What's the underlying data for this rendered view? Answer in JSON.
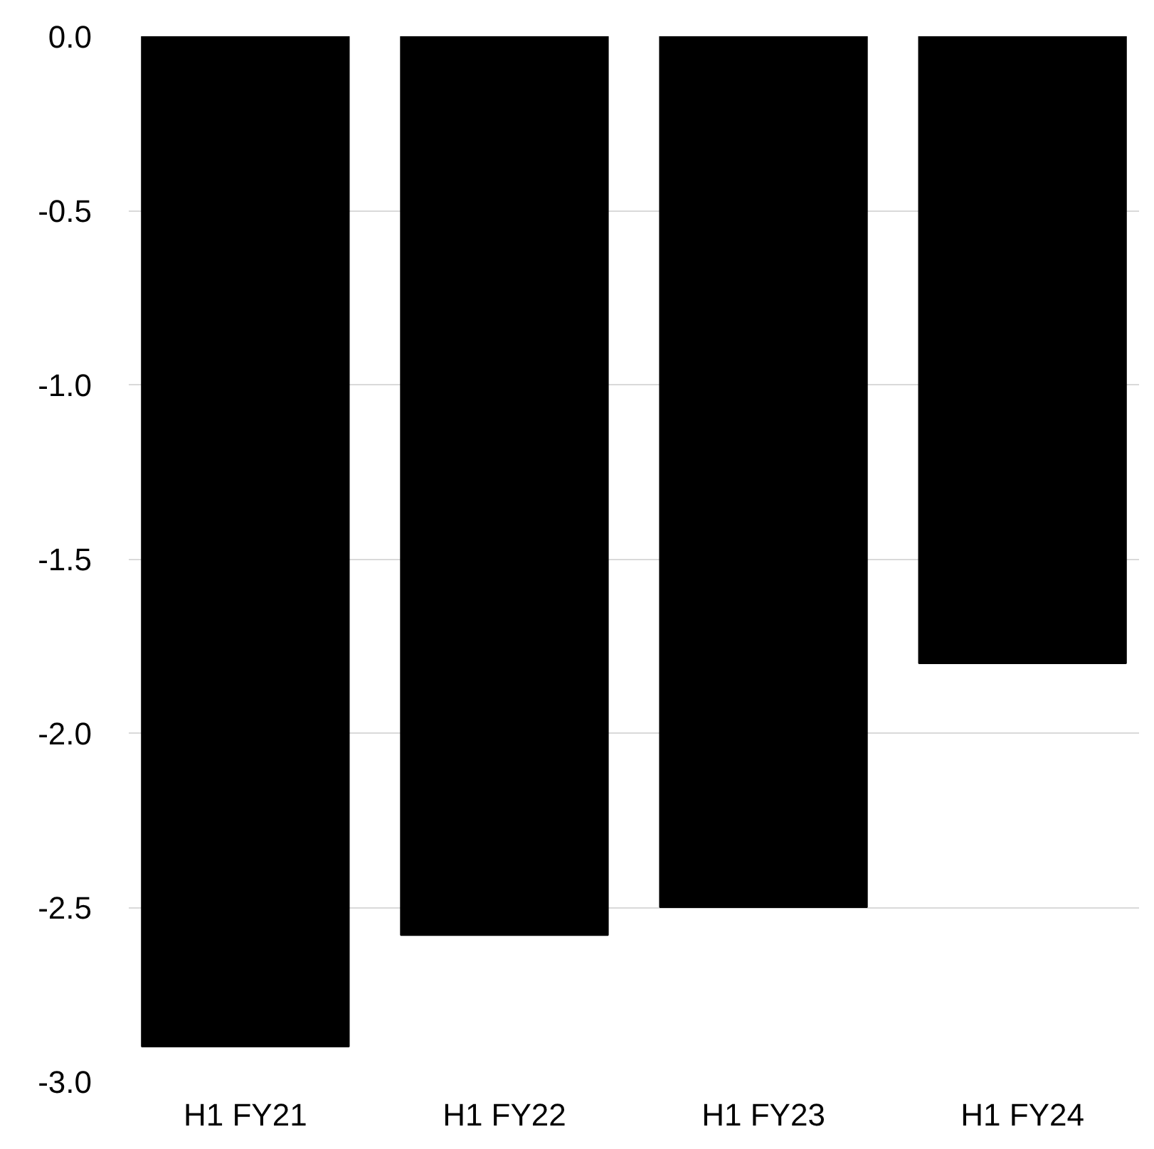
{
  "chart_data": {
    "type": "bar",
    "categories": [
      "H1 FY21",
      "H1 FY22",
      "H1 FY23",
      "H1 FY24"
    ],
    "values": [
      -2.9,
      -2.58,
      -2.5,
      -1.8
    ],
    "color": "#000000",
    "ylim": [
      -3.0,
      0.0
    ],
    "yticks": [
      {
        "value": -3.0,
        "label": "-3.0"
      },
      {
        "value": -2.5,
        "label": "-2.5"
      },
      {
        "value": -2.0,
        "label": "-2.0"
      },
      {
        "value": -1.5,
        "label": "-1.5"
      },
      {
        "value": -1.0,
        "label": "-1.0"
      },
      {
        "value": -0.5,
        "label": "-0.5"
      },
      {
        "value": 0.0,
        "label": "0.0"
      }
    ],
    "grid": "y"
  }
}
